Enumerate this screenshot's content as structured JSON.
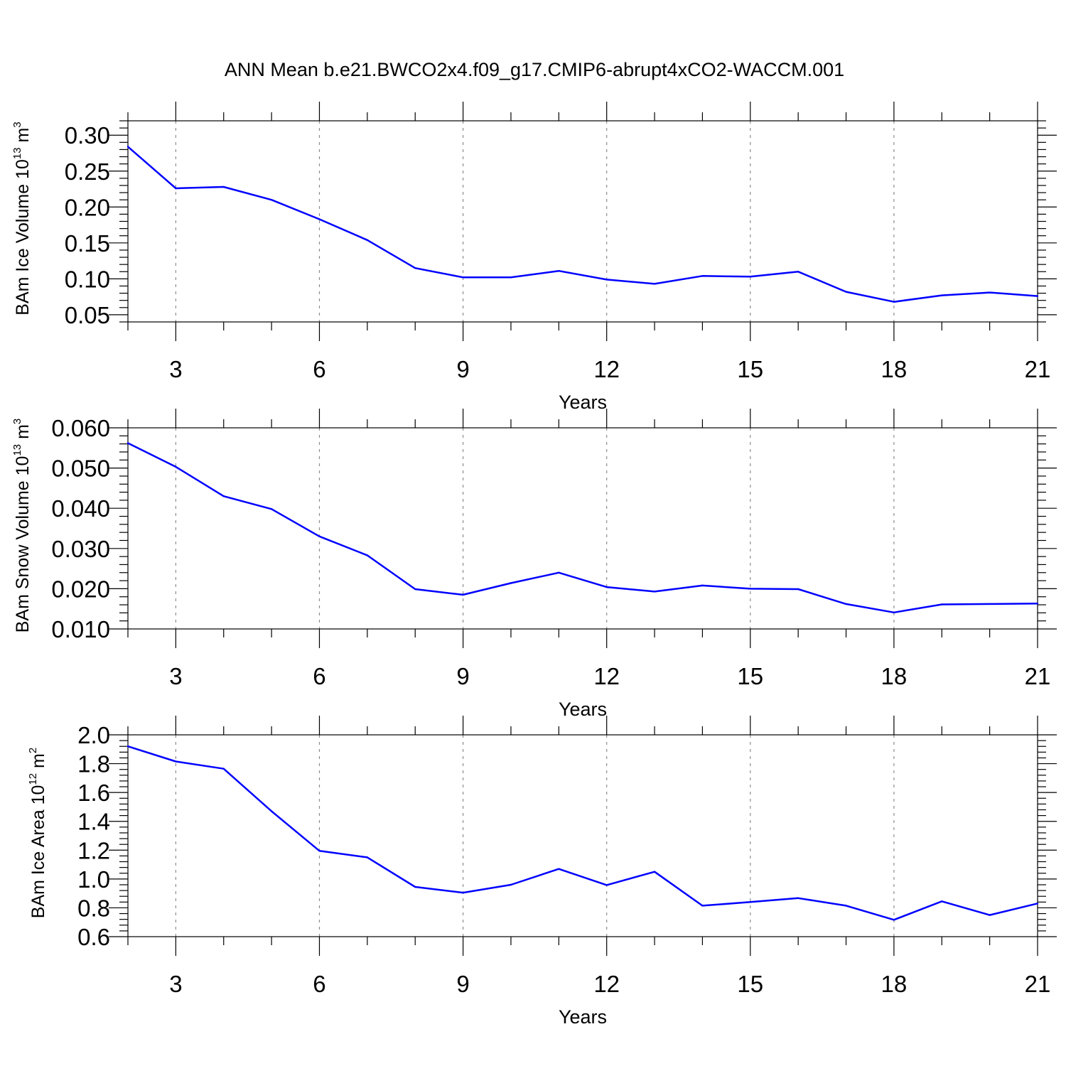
{
  "title": "ANN Mean b.e21.BWCO2x4.f09_g17.CMIP6-abrupt4xCO2-WACCM.001",
  "colors": {
    "line": "#0000ff",
    "grid": "#8c8c8c",
    "axis": "#000000"
  },
  "chart_data": [
    {
      "type": "line",
      "xlabel": "Years",
      "ylabel": {
        "prefix": "BAm Ice Volume 10",
        "exp1": "13",
        "mid": " m",
        "exp2": "3"
      },
      "xlim": [
        2,
        21
      ],
      "ylim": [
        0.04,
        0.32
      ],
      "xticks": [
        3,
        6,
        9,
        12,
        15,
        18,
        21
      ],
      "yticks": [
        0.05,
        0.1,
        0.15,
        0.2,
        0.25,
        0.3
      ],
      "ytick_labels": [
        "0.05",
        "0.10",
        "0.15",
        "0.20",
        "0.25",
        "0.30"
      ],
      "grid": "dashed vertical at major x ticks",
      "x": [
        2,
        3,
        4,
        5,
        6,
        7,
        8,
        9,
        10,
        11,
        12,
        13,
        14,
        15,
        16,
        17,
        18,
        19,
        20,
        21
      ],
      "values": [
        0.284,
        0.226,
        0.228,
        0.21,
        0.183,
        0.154,
        0.115,
        0.102,
        0.102,
        0.111,
        0.099,
        0.093,
        0.104,
        0.103,
        0.11,
        0.082,
        0.068,
        0.077,
        0.081,
        0.076
      ]
    },
    {
      "type": "line",
      "xlabel": "Years",
      "ylabel": {
        "prefix": "BAm Snow Volume 10",
        "exp1": "13",
        "mid": " m",
        "exp2": "3"
      },
      "xlim": [
        2,
        21
      ],
      "ylim": [
        0.01,
        0.06
      ],
      "xticks": [
        3,
        6,
        9,
        12,
        15,
        18,
        21
      ],
      "yticks": [
        0.01,
        0.02,
        0.03,
        0.04,
        0.05,
        0.06
      ],
      "ytick_labels": [
        "0.010",
        "0.020",
        "0.030",
        "0.040",
        "0.050",
        "0.060"
      ],
      "grid": "dashed vertical at major x ticks",
      "x": [
        2,
        3,
        4,
        5,
        6,
        7,
        8,
        9,
        10,
        11,
        12,
        13,
        14,
        15,
        16,
        17,
        18,
        19,
        20,
        21
      ],
      "values": [
        0.0562,
        0.0503,
        0.043,
        0.0398,
        0.033,
        0.0283,
        0.0199,
        0.0185,
        0.0214,
        0.024,
        0.0204,
        0.0193,
        0.0208,
        0.02,
        0.0199,
        0.0162,
        0.0141,
        0.0161,
        0.0162,
        0.0163
      ]
    },
    {
      "type": "line",
      "xlabel": "Years",
      "ylabel": {
        "prefix": "BAm Ice Area 10",
        "exp1": "12",
        "mid": " m",
        "exp2": "2"
      },
      "xlim": [
        2,
        21
      ],
      "ylim": [
        0.6,
        2.0
      ],
      "xticks": [
        3,
        6,
        9,
        12,
        15,
        18,
        21
      ],
      "yticks": [
        0.6,
        0.8,
        1.0,
        1.2,
        1.4,
        1.6,
        1.8,
        2.0
      ],
      "ytick_labels": [
        "0.6",
        "0.8",
        "1.0",
        "1.2",
        "1.4",
        "1.6",
        "1.8",
        "2.0"
      ],
      "grid": "dashed vertical at major x ticks",
      "x": [
        2,
        3,
        4,
        5,
        6,
        7,
        8,
        9,
        10,
        11,
        12,
        13,
        14,
        15,
        16,
        17,
        18,
        19,
        20,
        21
      ],
      "values": [
        1.92,
        1.815,
        1.765,
        1.47,
        1.195,
        1.15,
        0.945,
        0.905,
        0.96,
        1.07,
        0.958,
        1.05,
        0.815,
        0.84,
        0.867,
        0.815,
        0.717,
        0.845,
        0.75,
        0.83
      ]
    }
  ]
}
